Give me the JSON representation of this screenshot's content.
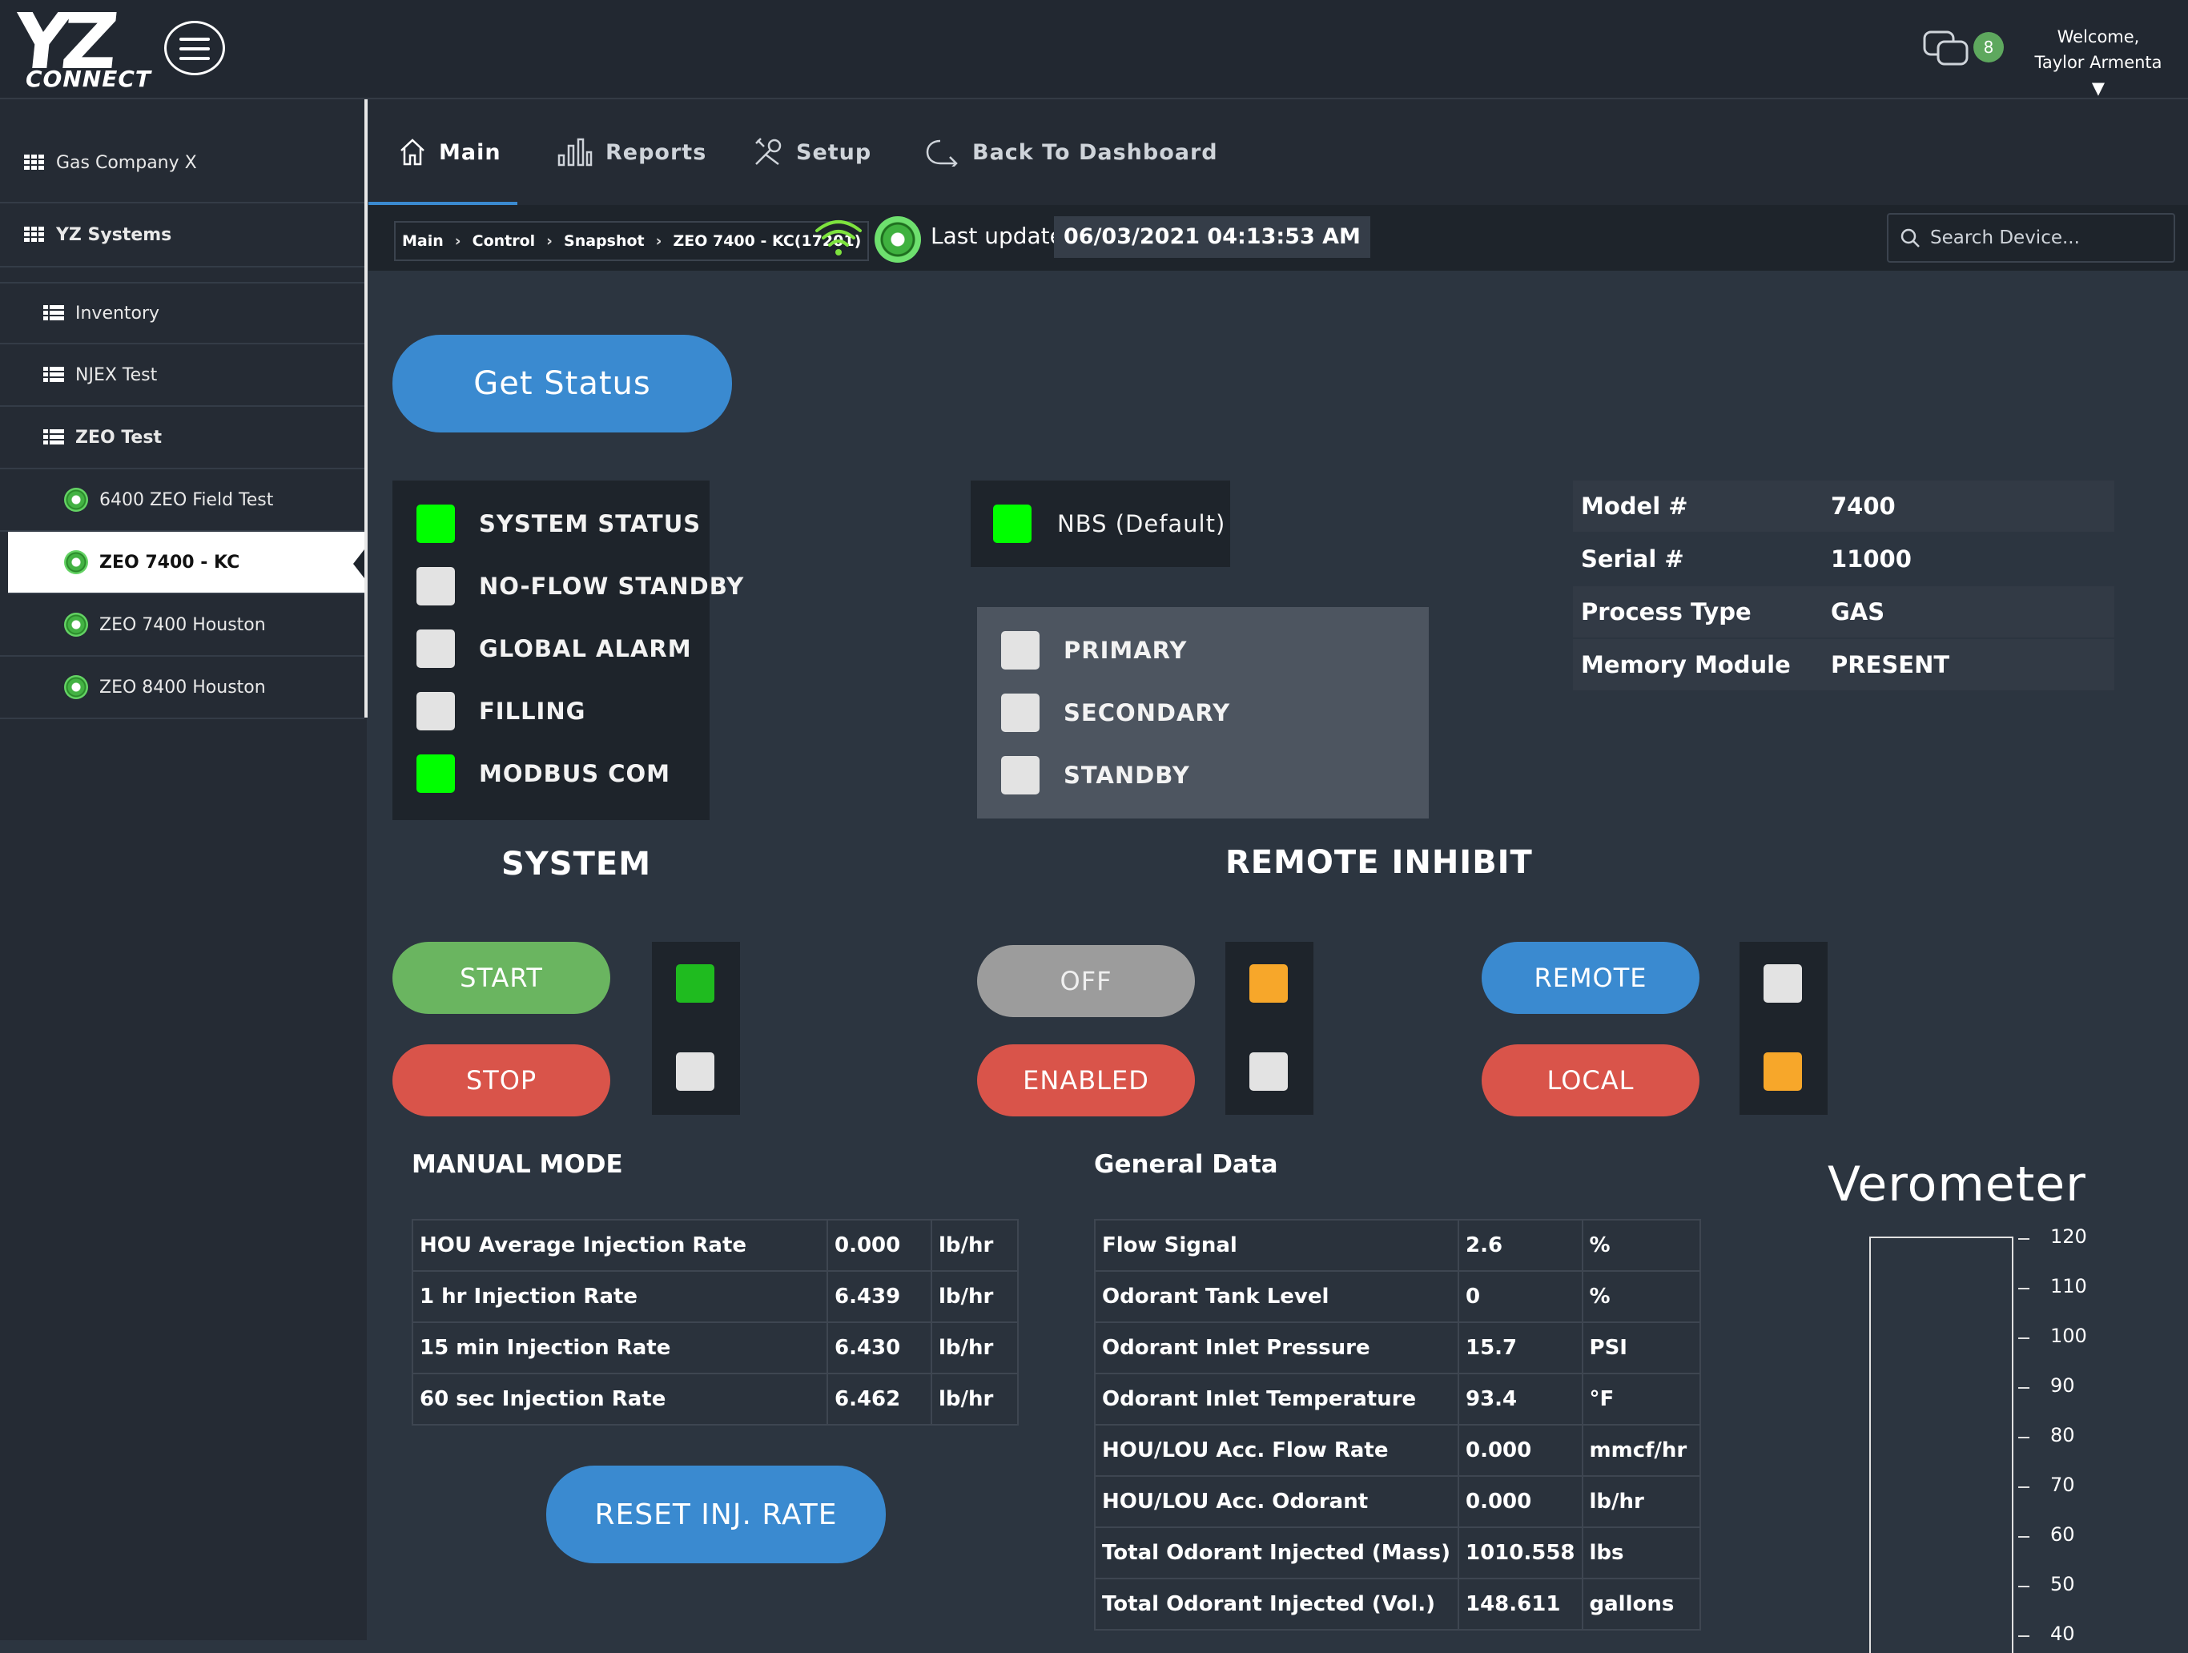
{
  "header": {
    "logo_main": "YZ",
    "logo_sub": "CONNECT",
    "notification_count": "8",
    "welcome_line1": "Welcome,",
    "welcome_line2": "Taylor Armenta"
  },
  "sidebar": {
    "company": "Gas Company X",
    "system": "YZ Systems",
    "groups": [
      "Inventory",
      "NJEX Test",
      "ZEO Test"
    ],
    "devices": [
      "6400 ZEO Field Test",
      "ZEO 7400 - KC",
      "ZEO 7400 Houston",
      "ZEO 8400 Houston"
    ]
  },
  "nav": {
    "main": "Main",
    "reports": "Reports",
    "setup": "Setup",
    "back": "Back To Dashboard"
  },
  "breadcrumb": [
    "Main",
    "Control",
    "Snapshot",
    "ZEO 7400 - KC(17201)"
  ],
  "last_update_label": "Last update",
  "last_update_value": "06/03/2021 04:13:53 AM",
  "search_placeholder": "Search Device...",
  "get_status_label": "Get Status",
  "system_status": [
    {
      "label": "SYSTEM STATUS",
      "state": "on"
    },
    {
      "label": "NO-FLOW STANDBY",
      "state": "off"
    },
    {
      "label": "GLOBAL ALARM",
      "state": "off"
    },
    {
      "label": "FILLING",
      "state": "off"
    },
    {
      "label": "MODBUS COM",
      "state": "on"
    }
  ],
  "nbs_label": "NBS (Default)",
  "mode_status": [
    "PRIMARY",
    "SECONDARY",
    "STANDBY"
  ],
  "device_info": [
    {
      "key": "Model #",
      "value": "7400"
    },
    {
      "key": "Serial #",
      "value": "11000"
    },
    {
      "key": "Process Type",
      "value": "GAS"
    },
    {
      "key": "Memory Module",
      "value": "PRESENT"
    }
  ],
  "system_title": "SYSTEM",
  "remote_inhibit_title": "REMOTE INHIBIT",
  "buttons": {
    "start": "START",
    "stop": "STOP",
    "off": "OFF",
    "enabled": "ENABLED",
    "remote": "REMOTE",
    "local": "LOCAL",
    "reset": "RESET INJ. RATE"
  },
  "manual_mode_title": "MANUAL MODE",
  "manual_mode": [
    [
      "HOU Average Injection Rate",
      "0.000",
      "lb/hr"
    ],
    [
      "1 hr Injection Rate",
      "6.439",
      "lb/hr"
    ],
    [
      "15 min Injection Rate",
      "6.430",
      "lb/hr"
    ],
    [
      "60 sec Injection Rate",
      "6.462",
      "lb/hr"
    ]
  ],
  "general_data_title": "General Data",
  "general_data": [
    [
      "Flow Signal",
      "2.6",
      "%"
    ],
    [
      "Odorant Tank Level",
      "0",
      "%"
    ],
    [
      "Odorant Inlet Pressure",
      "15.7",
      "PSI"
    ],
    [
      "Odorant Inlet Temperature",
      "93.4",
      "°F"
    ],
    [
      "HOU/LOU Acc. Flow Rate",
      "0.000",
      "mmcf/hr"
    ],
    [
      "HOU/LOU Acc. Odorant",
      "0.000",
      "lb/hr"
    ],
    [
      "Total Odorant Injected (Mass)",
      "1010.558",
      "lbs"
    ],
    [
      "Total Odorant Injected (Vol.)",
      "148.611",
      "gallons"
    ]
  ],
  "verometer": {
    "title": "Verometer",
    "ticks": [
      "120",
      "110",
      "100",
      "90",
      "80",
      "70",
      "60",
      "50",
      "40"
    ]
  },
  "colors": {
    "accent_blue": "#3a8ad0",
    "led_green": "#00ff00",
    "led_orange": "#f7a72a",
    "button_red": "#d9544a",
    "button_green": "#6ab560"
  }
}
